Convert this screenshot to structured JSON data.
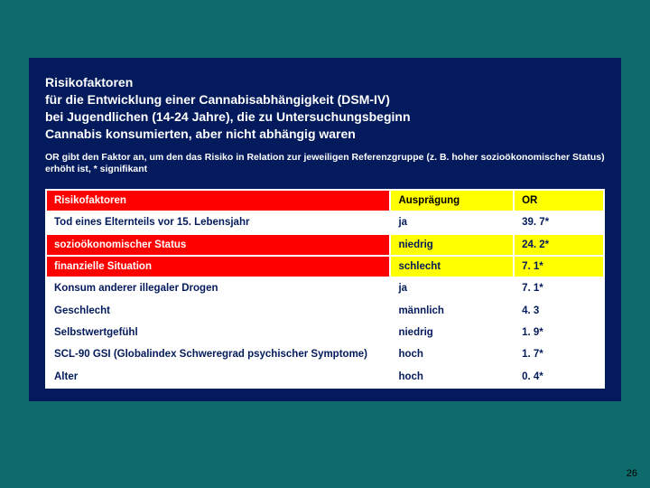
{
  "title_lines": [
    "Risikofaktoren",
    "für die Entwicklung einer Cannabisabhängigkeit (DSM-IV)",
    "bei Jugendlichen (14-24 Jahre), die zu Untersuchungsbeginn",
    "Cannabis konsumierten, aber nicht abhängig waren"
  ],
  "subtitle": "OR gibt den Faktor an, um den das Risiko in Relation zur jeweiligen Referenzgruppe (z. B. hoher sozioökonomischer Status) erhöht ist, * signifikant",
  "table": {
    "columns": [
      "Risikofaktoren",
      "Ausprägung",
      "OR"
    ],
    "col_widths_pct": [
      62,
      22,
      16
    ],
    "header_bg": [
      "#ff0000",
      "#ffff00",
      "#ffff00"
    ],
    "header_fg": [
      "#ffffff",
      "#000000",
      "#000000"
    ],
    "row_default_bg": "#ffffff",
    "row_default_fg": "#031b5c",
    "row_highlight_bg": [
      "#ff0000",
      "#ffff00",
      "#ffff00"
    ],
    "row_highlight_fg": [
      "#ffffff",
      "#031b5c",
      "#031b5c"
    ],
    "rows": [
      {
        "factor": "Tod eines Elternteils vor 15. Lebensjahr",
        "expr": "ja",
        "or": "39. 7*",
        "highlight": false
      },
      {
        "factor": "sozioökonomischer Status",
        "expr": "niedrig",
        "or": "24. 2*",
        "highlight": true
      },
      {
        "factor": "finanzielle Situation",
        "expr": "schlecht",
        "or": "7. 1*",
        "highlight": true
      },
      {
        "factor": "Konsum anderer illegaler Drogen",
        "expr": "ja",
        "or": "7. 1*",
        "highlight": false
      },
      {
        "factor": "Geschlecht",
        "expr": "männlich",
        "or": "4. 3",
        "highlight": false
      },
      {
        "factor": "Selbstwertgefühl",
        "expr": "niedrig",
        "or": "1. 9*",
        "highlight": false
      },
      {
        "factor": "SCL-90 GSI (Globalindex Schweregrad psychischer Symptome)",
        "expr": "hoch",
        "or": "1. 7*",
        "highlight": false
      },
      {
        "factor": "Alter",
        "expr": "hoch",
        "or": "0. 4*",
        "highlight": false
      }
    ]
  },
  "page_number": "26",
  "colors": {
    "slide_bg": "#0d6b6b",
    "panel_bg": "#031b5c",
    "table_bg": "#ffffff"
  },
  "fonts": {
    "family": "Verdana",
    "title_pt": 14,
    "subtitle_pt": 10.5,
    "table_pt": 11.5,
    "pagenum_pt": 11
  }
}
